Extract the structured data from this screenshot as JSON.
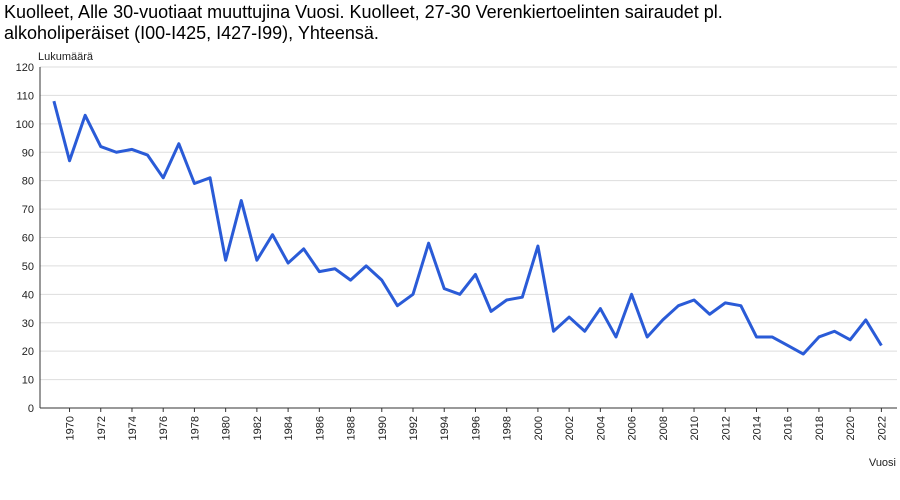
{
  "chart_data": {
    "type": "line",
    "title": "Kuolleet, Alle 30-vuotiaat muuttujina Vuosi. Kuolleet, 27-30 Verenkiertoelinten sairaudet pl. alkoholiperäiset (I00-I425, I427-I99), Yhteensä.",
    "y_label": "Lukumäärä",
    "x_label": "Vuosi",
    "x": [
      1969,
      1970,
      1971,
      1972,
      1973,
      1974,
      1975,
      1976,
      1977,
      1978,
      1979,
      1980,
      1981,
      1982,
      1983,
      1984,
      1985,
      1986,
      1987,
      1988,
      1989,
      1990,
      1991,
      1992,
      1993,
      1994,
      1995,
      1996,
      1997,
      1998,
      1999,
      2000,
      2001,
      2002,
      2003,
      2004,
      2005,
      2006,
      2007,
      2008,
      2009,
      2010,
      2011,
      2012,
      2013,
      2014,
      2015,
      2016,
      2017,
      2018,
      2019,
      2020,
      2021,
      2022
    ],
    "series": [
      {
        "color": "#2a5bd7",
        "values": [
          108,
          87,
          103,
          92,
          90,
          91,
          89,
          81,
          93,
          79,
          81,
          52,
          73,
          52,
          61,
          51,
          56,
          48,
          49,
          45,
          50,
          45,
          36,
          40,
          58,
          42,
          40,
          47,
          34,
          38,
          39,
          57,
          27,
          32,
          27,
          35,
          25,
          40,
          25,
          31,
          36,
          38,
          33,
          37,
          36,
          25,
          25,
          22,
          19,
          25,
          27,
          24,
          31,
          22
        ]
      }
    ],
    "xlim": [
      1968,
      2023
    ],
    "xticks": [
      1970,
      1972,
      1974,
      1976,
      1978,
      1980,
      1982,
      1984,
      1986,
      1988,
      1990,
      1992,
      1994,
      1996,
      1998,
      2000,
      2002,
      2004,
      2006,
      2008,
      2010,
      2012,
      2014,
      2016,
      2018,
      2020,
      2022
    ],
    "ylim": [
      0,
      120
    ],
    "yticks": [
      0,
      10,
      20,
      30,
      40,
      50,
      60,
      70,
      80,
      90,
      100,
      110,
      120
    ],
    "grid": true
  }
}
